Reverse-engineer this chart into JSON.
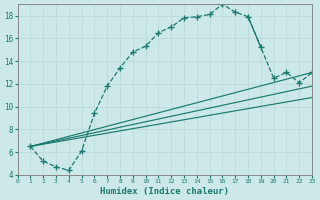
{
  "xlabel": "Humidex (Indice chaleur)",
  "bg_color": "#cce8e8",
  "line_color": "#1a7a6e",
  "grid_color": "#b8d8d8",
  "xlim": [
    0,
    23
  ],
  "ylim": [
    4,
    19
  ],
  "xticks": [
    0,
    1,
    2,
    3,
    4,
    5,
    6,
    7,
    8,
    9,
    10,
    11,
    12,
    13,
    14,
    15,
    16,
    17,
    18,
    19,
    20,
    21,
    22,
    23
  ],
  "yticks": [
    4,
    6,
    8,
    10,
    12,
    14,
    16,
    18
  ],
  "upper_x": [
    1,
    2,
    3,
    4,
    5,
    6,
    7,
    8,
    9,
    10,
    11,
    12,
    13,
    14,
    15,
    16,
    17,
    18,
    19,
    20,
    21,
    22,
    23
  ],
  "upper_y": [
    6.5,
    5.2,
    4.7,
    4.4,
    6.1,
    9.4,
    11.8,
    13.4,
    14.8,
    15.3,
    16.5,
    17.0,
    17.8,
    17.9,
    18.1,
    19.0,
    18.3,
    17.9,
    15.2,
    12.5,
    13.0,
    12.1,
    13.0
  ],
  "line1_x": [
    1,
    23
  ],
  "line1_y": [
    6.5,
    13.0
  ],
  "line2_x": [
    1,
    23
  ],
  "line2_y": [
    6.5,
    11.8
  ],
  "line3_x": [
    1,
    23
  ],
  "line3_y": [
    6.5,
    10.8
  ],
  "marker_pts_x": [
    1,
    2,
    3,
    4,
    5,
    6,
    7,
    8,
    9,
    10,
    11,
    12,
    13,
    14,
    15,
    16,
    17,
    18,
    21,
    22,
    23
  ],
  "marker_pts_y": [
    6.5,
    5.2,
    4.7,
    4.4,
    6.1,
    9.4,
    11.8,
    13.4,
    14.8,
    15.3,
    16.5,
    17.0,
    17.8,
    17.9,
    18.1,
    19.0,
    18.3,
    17.9,
    13.0,
    12.1,
    13.0
  ]
}
